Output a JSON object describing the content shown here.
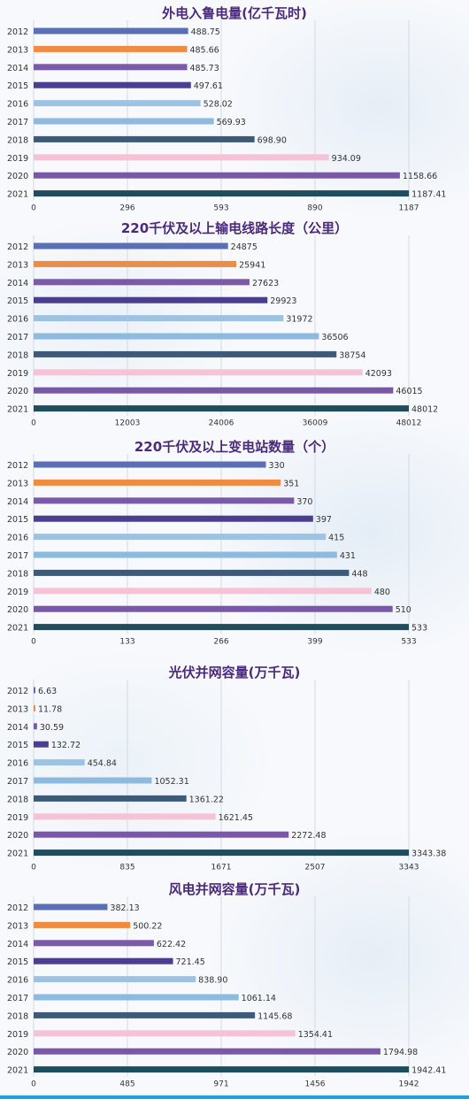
{
  "chart_data": [
    {
      "type": "bar",
      "title": "外电入鲁电量(亿千瓦时)",
      "categories": [
        "2012",
        "2013",
        "2014",
        "2015",
        "2016",
        "2017",
        "2018",
        "2019",
        "2020",
        "2021"
      ],
      "values": [
        488.75,
        485.66,
        485.73,
        497.61,
        528.02,
        569.93,
        698.9,
        934.09,
        1158.66,
        1187.41
      ],
      "value_labels": [
        "488.75",
        "485.66",
        "485.73",
        "497.61",
        "528.02",
        "569.93",
        "698.90",
        "934.09",
        "1158.66",
        "1187.41"
      ],
      "xlim": [
        0,
        1187
      ],
      "xticks": [
        "0",
        "296",
        "593",
        "890",
        "1187"
      ],
      "grid": true
    },
    {
      "type": "bar",
      "title": "220千伏及以上输电线路长度（公里）",
      "categories": [
        "2012",
        "2013",
        "2014",
        "2015",
        "2016",
        "2017",
        "2018",
        "2019",
        "2020",
        "2021"
      ],
      "values": [
        24875,
        25941,
        27623,
        29923,
        31972,
        36506,
        38754,
        42093,
        46015,
        48012
      ],
      "value_labels": [
        "24875",
        "25941",
        "27623",
        "29923",
        "31972",
        "36506",
        "38754",
        "42093",
        "46015",
        "48012"
      ],
      "xlim": [
        0,
        48012
      ],
      "xticks": [
        "0",
        "12003",
        "24006",
        "36009",
        "48012"
      ],
      "grid": true
    },
    {
      "type": "bar",
      "title": "220千伏及以上变电站数量（个）",
      "categories": [
        "2012",
        "2013",
        "2014",
        "2015",
        "2016",
        "2017",
        "2018",
        "2019",
        "2020",
        "2021"
      ],
      "values": [
        330,
        351,
        370,
        397,
        415,
        431,
        448,
        480,
        510,
        533
      ],
      "value_labels": [
        "330",
        "351",
        "370",
        "397",
        "415",
        "431",
        "448",
        "480",
        "510",
        "533"
      ],
      "xlim": [
        0,
        533
      ],
      "xticks": [
        "0",
        "133",
        "266",
        "399",
        "533"
      ],
      "grid": true
    },
    {
      "type": "bar",
      "title": "光伏并网容量(万千瓦)",
      "categories": [
        "2012",
        "2013",
        "2014",
        "2015",
        "2016",
        "2017",
        "2018",
        "2019",
        "2020",
        "2021"
      ],
      "values": [
        6.63,
        11.78,
        30.59,
        132.72,
        454.84,
        1052.31,
        1361.22,
        1621.45,
        2272.48,
        3343.38
      ],
      "value_labels": [
        "6.63",
        "11.78",
        "30.59",
        "132.72",
        "454.84",
        "1052.31",
        "1361.22",
        "1621.45",
        "2272.48",
        "3343.38"
      ],
      "xlim": [
        0,
        3343
      ],
      "xticks": [
        "0",
        "835",
        "1671",
        "2507",
        "3343"
      ],
      "grid": true
    },
    {
      "type": "bar",
      "title": "风电并网容量(万千瓦)",
      "categories": [
        "2012",
        "2013",
        "2014",
        "2015",
        "2016",
        "2017",
        "2018",
        "2019",
        "2020",
        "2021"
      ],
      "values": [
        382.13,
        500.22,
        622.42,
        721.45,
        838.9,
        1061.14,
        1145.68,
        1354.41,
        1794.98,
        1942.41
      ],
      "value_labels": [
        "382.13",
        "500.22",
        "622.42",
        "721.45",
        "838.90",
        "1061.14",
        "1145.68",
        "1354.41",
        "1794.98",
        "1942.41"
      ],
      "xlim": [
        0,
        1942
      ],
      "xticks": [
        "0",
        "485",
        "971",
        "1456",
        "1942"
      ],
      "grid": true
    }
  ],
  "colors": {
    "title": "#4b2a7b",
    "bars": [
      "#5b6fb5",
      "#ef8c43",
      "#7b5aa8",
      "#4b3d8f",
      "#9cc3e4",
      "#8fbadf",
      "#3e5a7a",
      "#f6c3d6",
      "#7a58a8",
      "#1f4d5e"
    ],
    "grid": "#c9d3df",
    "text": "#333333",
    "bottom_rule": "#1aa3d9"
  }
}
